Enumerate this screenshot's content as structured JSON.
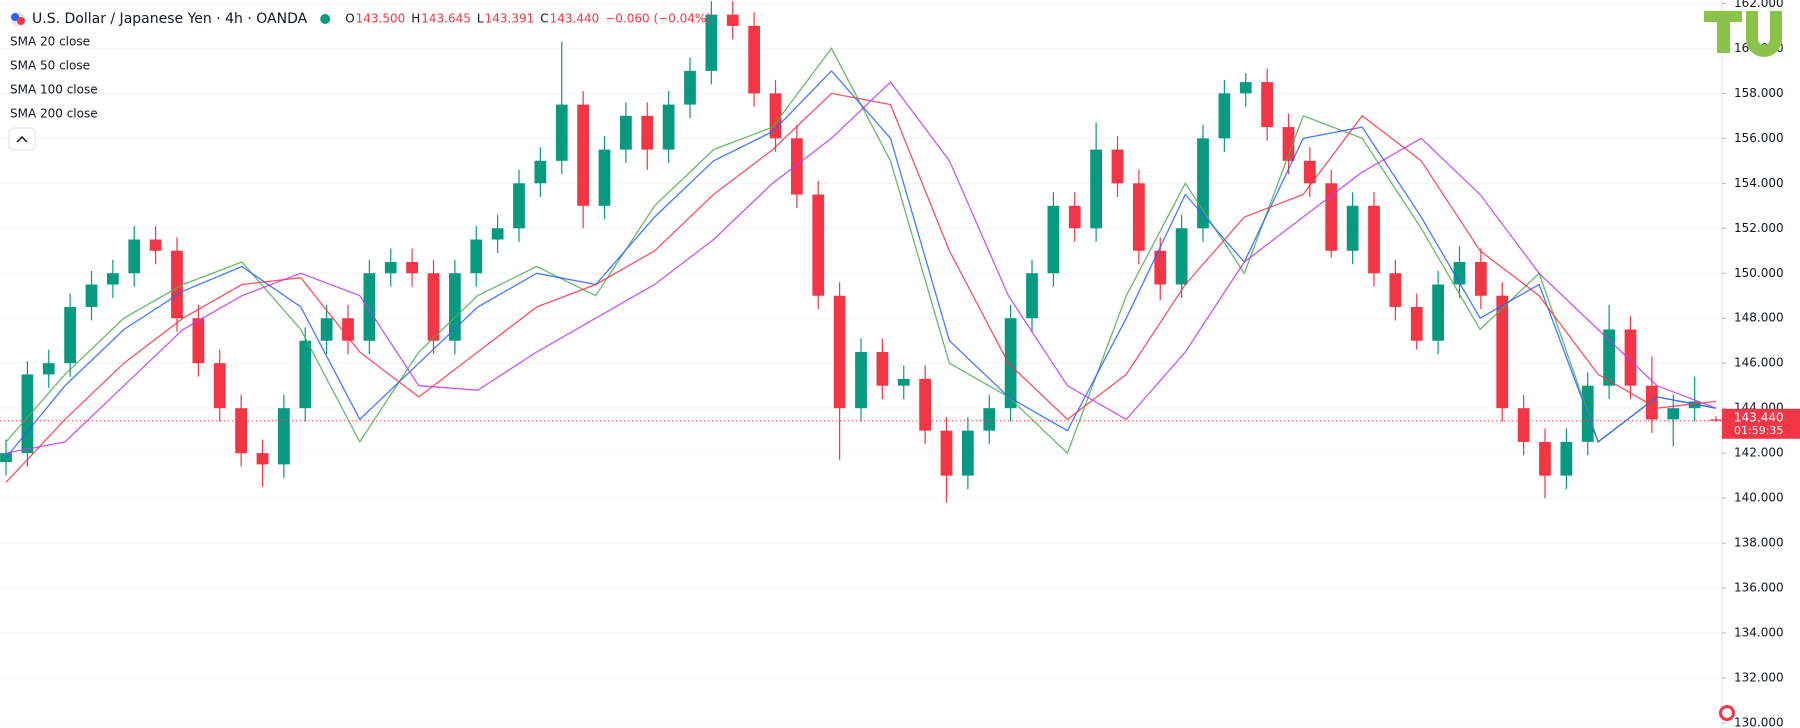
{
  "chart_data": {
    "type": "candlestick",
    "title": "U.S. Dollar / Japanese Yen · 4h · OANDA",
    "ohlc_labels": [
      "O",
      "H",
      "L",
      "C"
    ],
    "ohlc_texts": [
      "143.500",
      "143.645",
      "143.391",
      "143.440"
    ],
    "change": "−0.060 (−0.04%)",
    "up_color": "#089981",
    "down_color": "#f23645",
    "ylim": [
      130,
      162
    ],
    "yticks": [
      {
        "value": 130,
        "label": "130.000"
      },
      {
        "value": 132,
        "label": "132.000"
      },
      {
        "value": 134,
        "label": "134.000"
      },
      {
        "value": 136,
        "label": "136.000"
      },
      {
        "value": 138,
        "label": "138.000"
      },
      {
        "value": 140,
        "label": "140.000"
      },
      {
        "value": 142,
        "label": "142.000"
      },
      {
        "value": 144,
        "label": "144.000"
      },
      {
        "value": 146,
        "label": "146.000"
      },
      {
        "value": 148,
        "label": "148.000"
      },
      {
        "value": 150,
        "label": "150.000"
      },
      {
        "value": 152,
        "label": "152.000"
      },
      {
        "value": 154,
        "label": "154.000"
      },
      {
        "value": 156,
        "label": "156.000"
      },
      {
        "value": 158,
        "label": "158.000"
      },
      {
        "value": 160,
        "label": "160.000"
      },
      {
        "value": 162,
        "label": "162.000"
      }
    ],
    "grid": true,
    "last_price": {
      "value": 143.44,
      "label": "143.440"
    },
    "countdown": "01:59:35",
    "ohlc": [
      [
        141.6,
        142.6,
        141.0,
        142.0
      ],
      [
        142.0,
        146.1,
        141.4,
        145.5
      ],
      [
        145.5,
        146.6,
        144.9,
        146.0
      ],
      [
        146.0,
        149.1,
        145.4,
        148.5
      ],
      [
        148.5,
        150.1,
        147.9,
        149.5
      ],
      [
        149.5,
        150.6,
        148.9,
        150.0
      ],
      [
        150.0,
        152.1,
        149.4,
        151.5
      ],
      [
        151.5,
        152.1,
        150.4,
        151.0
      ],
      [
        151.0,
        151.6,
        147.4,
        148.0
      ],
      [
        148.0,
        148.6,
        145.4,
        146.0
      ],
      [
        146.0,
        146.6,
        143.4,
        144.0
      ],
      [
        144.0,
        144.6,
        141.4,
        142.0
      ],
      [
        142.0,
        142.6,
        140.5,
        141.5
      ],
      [
        141.5,
        144.6,
        140.9,
        144.0
      ],
      [
        144.0,
        147.6,
        143.4,
        147.0
      ],
      [
        147.0,
        148.6,
        146.4,
        148.0
      ],
      [
        148.0,
        148.6,
        146.4,
        147.0
      ],
      [
        147.0,
        150.6,
        146.4,
        150.0
      ],
      [
        150.0,
        151.1,
        149.4,
        150.5
      ],
      [
        150.5,
        151.1,
        149.4,
        150.0
      ],
      [
        150.0,
        150.6,
        146.4,
        147.0
      ],
      [
        147.0,
        150.6,
        146.4,
        150.0
      ],
      [
        150.0,
        152.1,
        149.4,
        151.5
      ],
      [
        151.5,
        152.6,
        150.9,
        152.0
      ],
      [
        152.0,
        154.6,
        151.4,
        154.0
      ],
      [
        154.0,
        155.6,
        153.4,
        155.0
      ],
      [
        155.0,
        160.3,
        154.4,
        157.5
      ],
      [
        157.5,
        158.1,
        152.0,
        153.0
      ],
      [
        153.0,
        156.1,
        152.4,
        155.5
      ],
      [
        155.5,
        157.6,
        154.9,
        157.0
      ],
      [
        157.0,
        157.6,
        154.6,
        155.5
      ],
      [
        155.5,
        158.1,
        154.9,
        157.5
      ],
      [
        157.5,
        159.6,
        156.9,
        159.0
      ],
      [
        159.0,
        162.1,
        158.4,
        161.5
      ],
      [
        161.5,
        162.1,
        160.4,
        161.0
      ],
      [
        161.0,
        161.6,
        157.4,
        158.0
      ],
      [
        158.0,
        158.6,
        155.4,
        156.0
      ],
      [
        156.0,
        156.6,
        152.9,
        153.5
      ],
      [
        153.5,
        154.1,
        148.4,
        149.0
      ],
      [
        149.0,
        149.6,
        141.7,
        144.0
      ],
      [
        144.0,
        147.1,
        143.4,
        146.5
      ],
      [
        146.5,
        147.1,
        144.4,
        145.0
      ],
      [
        145.0,
        145.9,
        144.4,
        145.3
      ],
      [
        145.3,
        145.9,
        142.4,
        143.0
      ],
      [
        143.0,
        143.6,
        139.8,
        141.0
      ],
      [
        141.0,
        143.6,
        140.4,
        143.0
      ],
      [
        143.0,
        144.6,
        142.4,
        144.0
      ],
      [
        144.0,
        148.6,
        143.4,
        148.0
      ],
      [
        148.0,
        150.6,
        147.4,
        150.0
      ],
      [
        150.0,
        153.6,
        149.4,
        153.0
      ],
      [
        153.0,
        153.6,
        151.4,
        152.0
      ],
      [
        152.0,
        156.7,
        151.4,
        155.5
      ],
      [
        155.5,
        156.1,
        153.4,
        154.0
      ],
      [
        154.0,
        154.6,
        150.4,
        151.0
      ],
      [
        151.0,
        151.6,
        148.8,
        149.5
      ],
      [
        149.5,
        152.6,
        148.9,
        152.0
      ],
      [
        152.0,
        156.6,
        151.4,
        156.0
      ],
      [
        156.0,
        158.6,
        155.4,
        158.0
      ],
      [
        158.0,
        158.9,
        157.4,
        158.5
      ],
      [
        158.5,
        159.1,
        155.9,
        156.5
      ],
      [
        156.5,
        157.1,
        154.4,
        155.0
      ],
      [
        155.0,
        155.6,
        153.4,
        154.0
      ],
      [
        154.0,
        154.6,
        150.7,
        151.0
      ],
      [
        151.0,
        153.6,
        150.4,
        153.0
      ],
      [
        153.0,
        153.6,
        149.4,
        150.0
      ],
      [
        150.0,
        150.6,
        147.9,
        148.5
      ],
      [
        148.5,
        149.1,
        146.6,
        147.0
      ],
      [
        147.0,
        150.1,
        146.4,
        149.5
      ],
      [
        149.5,
        151.2,
        148.9,
        150.5
      ],
      [
        150.5,
        151.1,
        148.4,
        149.0
      ],
      [
        149.0,
        149.6,
        143.4,
        144.0
      ],
      [
        144.0,
        144.6,
        141.9,
        142.5
      ],
      [
        142.5,
        143.1,
        140.0,
        141.0
      ],
      [
        141.0,
        143.1,
        140.4,
        142.5
      ],
      [
        142.5,
        145.6,
        141.9,
        145.0
      ],
      [
        145.0,
        148.6,
        144.4,
        147.5
      ],
      [
        147.5,
        148.1,
        144.4,
        145.0
      ],
      [
        145.0,
        146.3,
        142.9,
        143.5
      ],
      [
        143.5,
        144.6,
        142.3,
        144.0
      ],
      [
        144.0,
        145.4,
        143.4,
        144.3
      ],
      [
        143.5,
        143.645,
        143.391,
        143.44
      ]
    ],
    "series": [
      {
        "name": "SMA 20 close",
        "color": "#4caf50",
        "values": [
          142.5,
          145.5,
          148,
          149.5,
          150.5,
          147.5,
          142.5,
          146.5,
          149,
          150.3,
          149,
          153,
          155.5,
          156.5,
          160,
          155,
          146,
          144.5,
          142,
          149,
          154,
          150,
          157,
          156,
          152,
          147.5,
          150,
          142.5,
          144.5,
          144
        ]
      },
      {
        "name": "SMA 50 close",
        "color": "#2962ff",
        "values": [
          141.8,
          145,
          147.5,
          149.2,
          150.3,
          148.5,
          143.5,
          146,
          148.5,
          150,
          149.5,
          152.5,
          155,
          156.3,
          159,
          156,
          147,
          144.5,
          143,
          148,
          153.5,
          150.5,
          156,
          156.5,
          152.5,
          148,
          149.5,
          142.5,
          144.5,
          144
        ]
      },
      {
        "name": "SMA 100 close",
        "color": "#f23645",
        "values": [
          140.7,
          143.5,
          146,
          148,
          149.5,
          149.8,
          146.5,
          144.5,
          146.5,
          148.5,
          149.5,
          151,
          153.5,
          155.5,
          158,
          157.5,
          151,
          146,
          143.5,
          145.5,
          149.5,
          152.5,
          153.5,
          157,
          155,
          151,
          149,
          145.5,
          144,
          144.3
        ]
      },
      {
        "name": "SMA 200 close",
        "color": "#c038f0",
        "values": [
          142,
          142.5,
          145,
          147.5,
          149,
          150,
          149,
          145,
          144.8,
          146.5,
          148,
          149.5,
          151.5,
          154,
          156,
          158.5,
          155,
          149,
          145,
          143.5,
          146.5,
          150.5,
          152.5,
          154.5,
          156,
          153.5,
          150,
          147.5,
          145,
          144
        ]
      }
    ]
  }
}
